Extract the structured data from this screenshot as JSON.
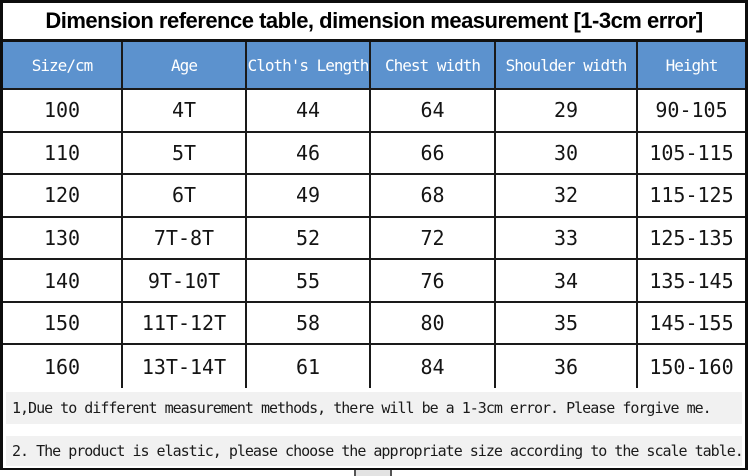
{
  "title": "Dimension reference table, dimension measurement [1-3cm error]",
  "table": {
    "columns": [
      "Size/cm",
      "Age",
      "Cloth's Length",
      "Chest width",
      "Shoulder width",
      "Height"
    ],
    "rows": [
      [
        "100",
        "4T",
        "44",
        "64",
        "29",
        "90-105"
      ],
      [
        "110",
        "5T",
        "46",
        "66",
        "30",
        "105-115"
      ],
      [
        "120",
        "6T",
        "49",
        "68",
        "32",
        "115-125"
      ],
      [
        "130",
        "7T-8T",
        "52",
        "72",
        "33",
        "125-135"
      ],
      [
        "140",
        "9T-10T",
        "55",
        "76",
        "34",
        "135-145"
      ],
      [
        "150",
        "11T-12T",
        "58",
        "80",
        "35",
        "145-155"
      ],
      [
        "160",
        "13T-14T",
        "61",
        "84",
        "36",
        "150-160"
      ]
    ]
  },
  "notes": [
    "1,Due to different measurement methods, there will be a 1-3cm error. Please forgive me.",
    "2. The product is elastic, please choose the appropriate size according to the scale table."
  ],
  "colors": {
    "header_bg": "#5C92CE",
    "header_text": "#FFFFFF",
    "grid_line": "#1A1A1A",
    "note_bg": "#F1F1F1",
    "title_text": "#000000"
  }
}
